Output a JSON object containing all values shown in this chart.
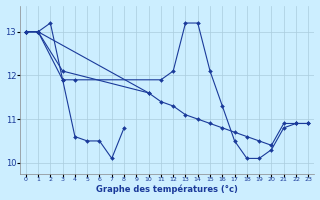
{
  "xlabel": "Graphe des températures (°c)",
  "background_color": "#cceeff",
  "grid_color": "#aaccdd",
  "line_color": "#1a3a9a",
  "marker": "D",
  "markersize": 2.0,
  "linewidth": 0.8,
  "series": [
    {
      "x": [
        0,
        1,
        2,
        3,
        4,
        5,
        6,
        7,
        8
      ],
      "y": [
        13.0,
        13.0,
        13.2,
        11.9,
        10.6,
        10.5,
        10.5,
        10.1,
        10.8
      ]
    },
    {
      "x": [
        0,
        1,
        3,
        4,
        11,
        12,
        13,
        14,
        15,
        16,
        17,
        18,
        19,
        20,
        21,
        22,
        23
      ],
      "y": [
        13.0,
        13.0,
        11.9,
        11.9,
        11.9,
        12.1,
        13.2,
        13.2,
        12.1,
        11.3,
        10.5,
        10.1,
        10.1,
        10.3,
        10.8,
        10.9,
        10.9
      ]
    },
    {
      "x": [
        0,
        1,
        3,
        10
      ],
      "y": [
        13.0,
        13.0,
        12.1,
        11.6
      ]
    },
    {
      "x": [
        0,
        1,
        10,
        11,
        12,
        13,
        14,
        15,
        16,
        17,
        18,
        19,
        20,
        21,
        22,
        23
      ],
      "y": [
        13.0,
        13.0,
        11.6,
        11.4,
        11.3,
        11.1,
        11.0,
        10.9,
        10.8,
        10.7,
        10.6,
        10.5,
        10.4,
        10.9,
        10.9,
        10.9
      ]
    }
  ],
  "xlim": [
    -0.5,
    23.5
  ],
  "ylim": [
    9.75,
    13.6
  ],
  "yticks": [
    10,
    11,
    12,
    13
  ],
  "xticks": [
    0,
    1,
    2,
    3,
    4,
    5,
    6,
    7,
    8,
    9,
    10,
    11,
    12,
    13,
    14,
    15,
    16,
    17,
    18,
    19,
    20,
    21,
    22,
    23
  ],
  "xticklabels": [
    "0",
    "1",
    "2",
    "3",
    "4",
    "5",
    "6",
    "7",
    "8",
    "9",
    "10",
    "11",
    "12",
    "13",
    "14",
    "15",
    "16",
    "17",
    "18",
    "19",
    "20",
    "21",
    "22",
    "23"
  ],
  "figsize": [
    3.2,
    2.0
  ],
  "dpi": 100
}
